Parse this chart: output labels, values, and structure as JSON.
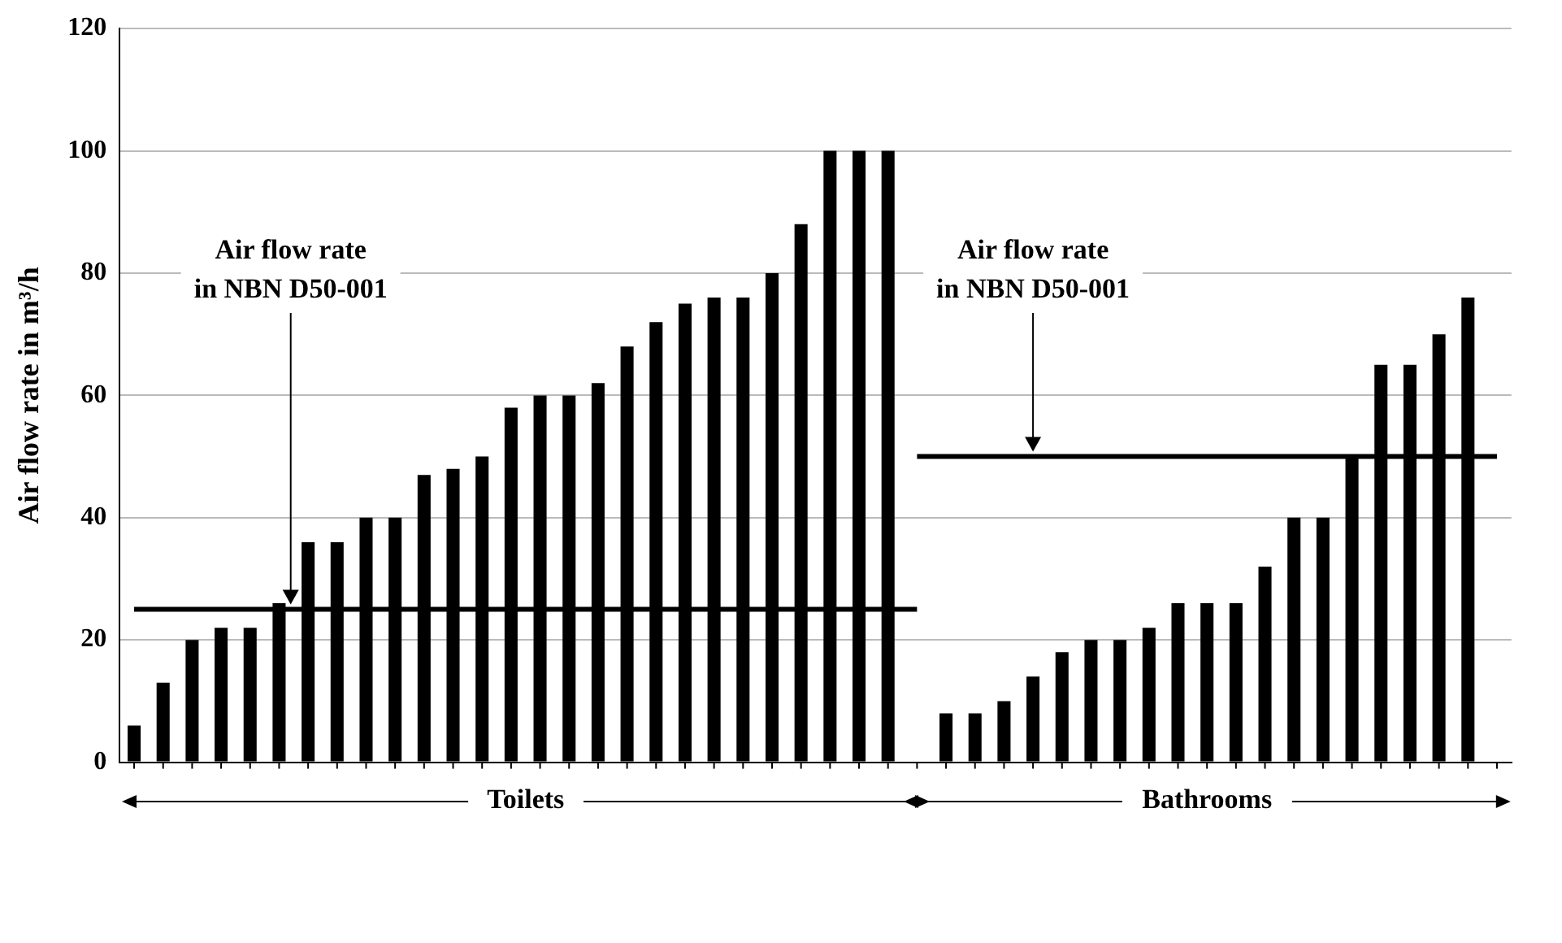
{
  "chart_data": {
    "type": "bar",
    "ylabel": "Air flow rate in m³/h",
    "categories": [
      null,
      null,
      null,
      null,
      null,
      null,
      null,
      null,
      null,
      null,
      null,
      null,
      null,
      null,
      null,
      null,
      null,
      null,
      null,
      null,
      null,
      null,
      null,
      null,
      null,
      null,
      null,
      null,
      null,
      null,
      null,
      null,
      null,
      null,
      null,
      null,
      null,
      null,
      null,
      null,
      null,
      null,
      null,
      null,
      null,
      null,
      null,
      null
    ],
    "series": [
      {
        "color": "#000000",
        "values": [
          6,
          13,
          20,
          22,
          22,
          26,
          36,
          36,
          40,
          40,
          47,
          48,
          50,
          58,
          60,
          60,
          62,
          68,
          72,
          75,
          76,
          76,
          80,
          88,
          100,
          100,
          100,
          null,
          8,
          8,
          10,
          14,
          18,
          20,
          20,
          22,
          26,
          26,
          26,
          32,
          40,
          40,
          50,
          65,
          65,
          70,
          76,
          null
        ]
      },
      {
        "type": "line",
        "color": "#000000",
        "values": [
          25,
          25,
          25,
          25,
          25,
          25,
          25,
          25,
          25,
          25,
          25,
          25,
          25,
          25,
          25,
          25,
          25,
          25,
          25,
          25,
          25,
          25,
          25,
          25,
          25,
          25,
          25,
          25,
          null,
          null,
          null,
          null,
          null,
          null,
          null,
          null,
          null,
          null,
          null,
          null,
          null,
          null,
          null,
          null,
          null,
          null,
          null,
          null
        ]
      },
      {
        "type": "line",
        "color": "#000000",
        "values": [
          null,
          null,
          null,
          null,
          null,
          null,
          null,
          null,
          null,
          null,
          null,
          null,
          null,
          null,
          null,
          null,
          null,
          null,
          null,
          null,
          null,
          null,
          null,
          null,
          null,
          null,
          null,
          50,
          50,
          50,
          50,
          50,
          50,
          50,
          50,
          50,
          50,
          50,
          50,
          50,
          50,
          50,
          50,
          50,
          50,
          50,
          50,
          50
        ]
      }
    ],
    "annotations": [
      "Air flow rate\nin NBN D50-001",
      "Air flow rate\nin NBN D50-001",
      "Toilets",
      "Bathrooms"
    ],
    "ylim": [
      0,
      120
    ],
    "yticks": [
      0,
      20,
      40,
      60,
      80,
      100,
      120
    ],
    "grid": "y",
    "legend": false,
    "marker": "none",
    "line_style": "solid"
  }
}
